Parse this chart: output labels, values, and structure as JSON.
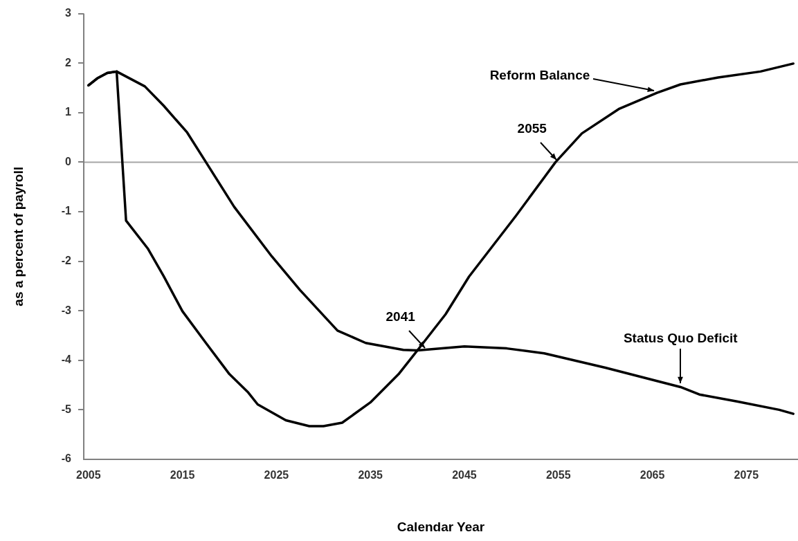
{
  "chart_data": {
    "type": "line",
    "xlabel": "Calendar Year",
    "ylabel": "as a percent of payroll",
    "series": [
      {
        "name": "Status Quo Deficit",
        "color": "#000000",
        "x": [
          2005,
          2006,
          2007,
          2008,
          2011,
          2013,
          2015.5,
          2017.5,
          2020.5,
          2024.5,
          2027.5,
          2031.5,
          2034.5,
          2038.5,
          2040,
          2045,
          2049.5,
          2053.5,
          2060,
          2068,
          2070,
          2074,
          2078.5,
          2080
        ],
        "values": [
          1.55,
          1.7,
          1.8,
          1.83,
          1.53,
          1.14,
          0.6,
          0,
          -0.9,
          -1.9,
          -2.58,
          -3.4,
          -3.65,
          -3.79,
          -3.8,
          -3.72,
          -3.76,
          -3.86,
          -4.15,
          -4.54,
          -4.69,
          -4.83,
          -5.0,
          -5.08
        ]
      },
      {
        "name": "Reform Balance",
        "color": "#000000",
        "x": [
          2005,
          2006,
          2007,
          2008,
          2009,
          2011.3,
          2013,
          2015,
          2017.5,
          2020,
          2022,
          2023,
          2026,
          2028.5,
          2030,
          2032,
          2035,
          2038,
          2040,
          2043,
          2045.5,
          2050.5,
          2054.7,
          2057.5,
          2061.5,
          2065.5,
          2068,
          2072,
          2076.5,
          2080
        ],
        "values": [
          1.55,
          1.7,
          1.8,
          1.83,
          -1.18,
          -1.74,
          -2.3,
          -3.01,
          -3.65,
          -4.28,
          -4.65,
          -4.89,
          -5.21,
          -5.33,
          -5.33,
          -5.26,
          -4.85,
          -4.28,
          -3.8,
          -3.07,
          -2.31,
          -1.08,
          0,
          0.58,
          1.08,
          1.4,
          1.57,
          1.71,
          1.83,
          1.99
        ]
      }
    ],
    "annotations": [
      {
        "text": "2055",
        "x": 2055,
        "y": 0
      },
      {
        "text": "2041",
        "x": 2041,
        "y": -3.8
      }
    ],
    "ref_lines": [
      {
        "axis": "y",
        "value": 0,
        "color": "#a6a6a6"
      }
    ],
    "xlim": [
      2004.5,
      2080.5
    ],
    "xticks": [
      2005,
      2015,
      2025,
      2035,
      2045,
      2055,
      2065,
      2075
    ],
    "ylim": [
      -6,
      3
    ],
    "yticks": [
      -6,
      -5,
      -4,
      -3,
      -2,
      -1,
      0,
      1,
      2,
      3
    ],
    "grid": false,
    "legend": false,
    "marker": "none",
    "line_style": "solid"
  }
}
